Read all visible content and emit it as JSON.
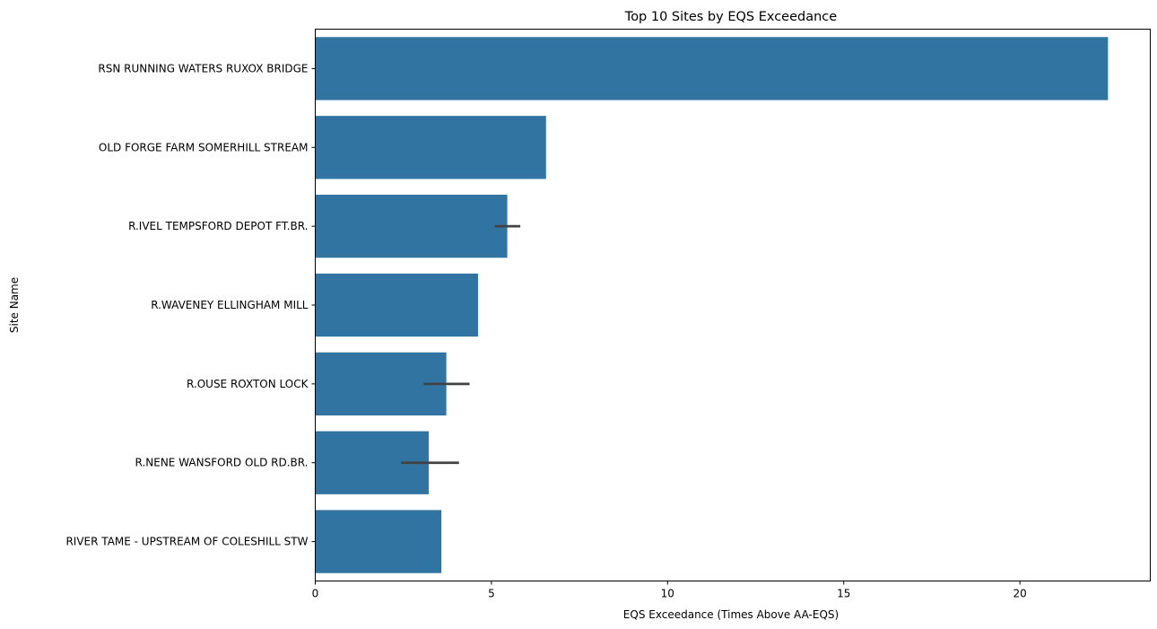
{
  "chart_data": {
    "type": "bar",
    "orientation": "horizontal",
    "title": "Top 10 Sites by EQS Exceedance",
    "xlabel": "EQS Exceedance (Times Above AA-EQS)",
    "ylabel": "Site Name",
    "xlim": [
      0,
      23.7
    ],
    "xticks": [
      0,
      5,
      10,
      15,
      20
    ],
    "grid": false,
    "bar_color": "#3274a1",
    "errorbar_color": "#424242",
    "categories": [
      "RSN RUNNING WATERS RUXOX BRIDGE",
      "OLD FORGE FARM SOMERHILL STREAM",
      "R.IVEL TEMPSFORD DEPOT FT.BR.",
      "R.WAVENEY ELLINGHAM MILL",
      "R.OUSE ROXTON LOCK",
      "R.NENE WANSFORD OLD RD.BR.",
      "RIVER TAME - UPSTREAM OF COLESHILL STW"
    ],
    "values": [
      22.5,
      6.55,
      5.45,
      4.62,
      3.72,
      3.22,
      3.58
    ],
    "error_intervals": [
      null,
      null,
      [
        5.1,
        5.82
      ],
      null,
      [
        3.08,
        4.38
      ],
      [
        2.43,
        4.08
      ],
      null
    ]
  }
}
